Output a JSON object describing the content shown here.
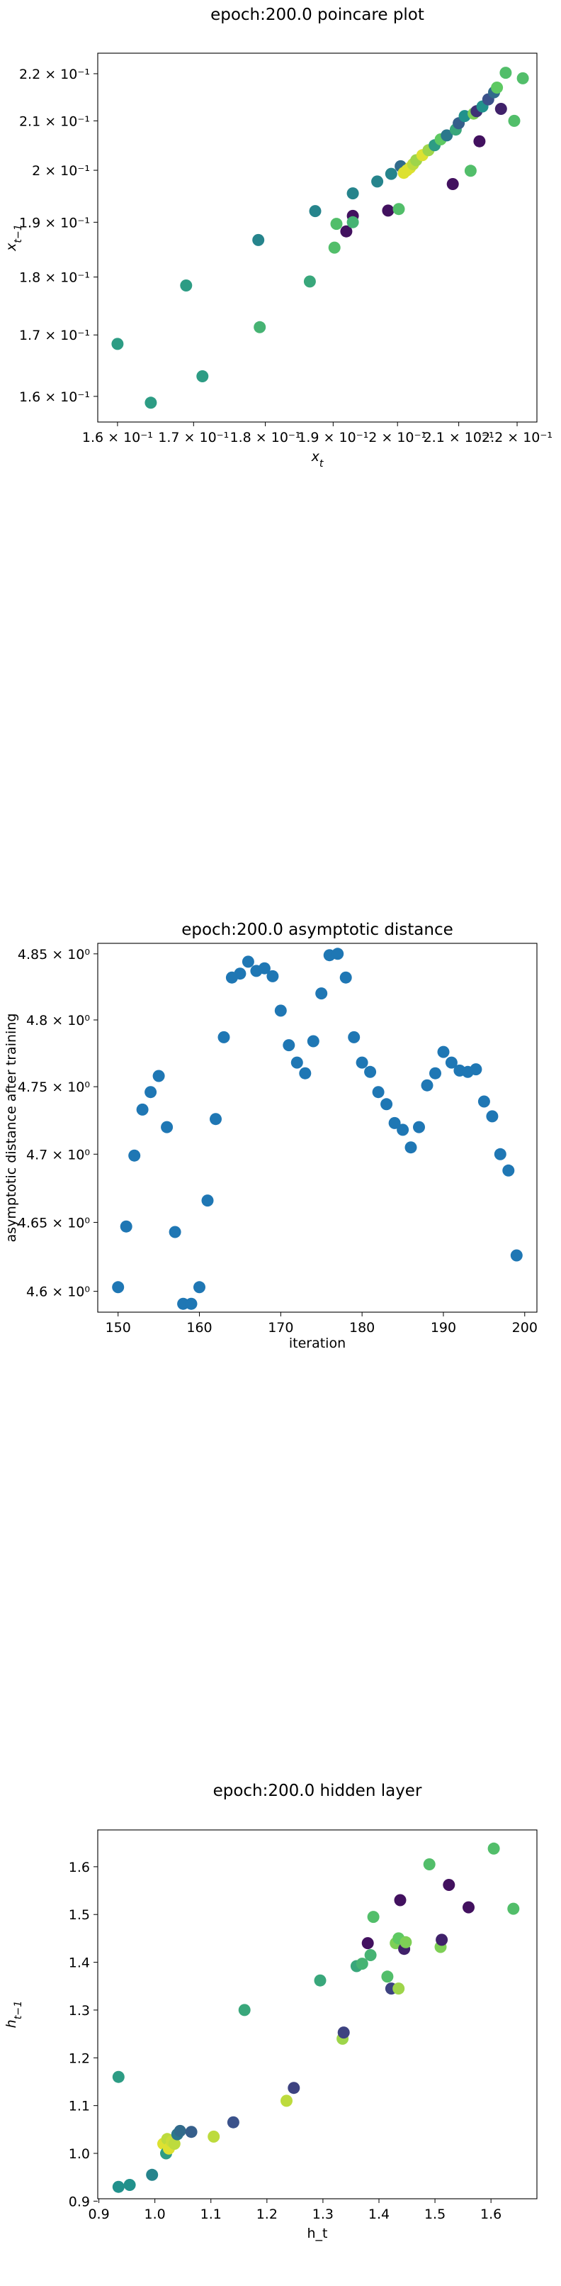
{
  "chart_data": [
    {
      "type": "scatter",
      "title": "epoch:200.0 poincare plot",
      "xlabel": "x_t",
      "ylabel": "x_{t-1}",
      "xscale": "log",
      "yscale": "log",
      "xlim": [
        0.1575,
        0.2235
      ],
      "ylim": [
        0.156,
        0.2245
      ],
      "xticks": [
        0.16,
        0.17,
        0.18,
        0.19,
        0.2,
        0.21,
        0.22
      ],
      "xtick_labels": [
        "1.6 × 10⁻¹",
        "1.7 × 10⁻¹",
        "1.8 × 10⁻¹",
        "1.9 × 10⁻¹",
        "2 × 10⁻¹",
        "2.1 × 10⁻¹",
        "2.2 × 10⁻¹"
      ],
      "yticks": [
        0.16,
        0.17,
        0.18,
        0.19,
        0.2,
        0.21,
        0.22
      ],
      "ytick_labels": [
        "1.6 × 10⁻¹",
        "1.7 × 10⁻¹",
        "1.8 × 10⁻¹",
        "1.9 × 10⁻¹",
        "2 × 10⁻¹",
        "2.1 × 10⁻¹",
        "2.2 × 10⁻¹"
      ],
      "grid": false,
      "colormap": "viridis",
      "points": [
        {
          "x": 0.16,
          "y": 0.1685,
          "c": 0.55
        },
        {
          "x": 0.1643,
          "y": 0.159,
          "c": 0.55
        },
        {
          "x": 0.169,
          "y": 0.1785,
          "c": 0.55
        },
        {
          "x": 0.1712,
          "y": 0.1632,
          "c": 0.55
        },
        {
          "x": 0.179,
          "y": 0.1867,
          "c": 0.45
        },
        {
          "x": 0.1792,
          "y": 0.1713,
          "c": 0.65
        },
        {
          "x": 0.1865,
          "y": 0.1792,
          "c": 0.6
        },
        {
          "x": 0.1873,
          "y": 0.1921,
          "c": 0.45
        },
        {
          "x": 0.1902,
          "y": 0.1853,
          "c": 0.7
        },
        {
          "x": 0.1905,
          "y": 0.1897,
          "c": 0.7
        },
        {
          "x": 0.192,
          "y": 0.1883,
          "c": 0.05
        },
        {
          "x": 0.193,
          "y": 0.1912,
          "c": 0.05
        },
        {
          "x": 0.193,
          "y": 0.19,
          "c": 0.65
        },
        {
          "x": 0.193,
          "y": 0.1955,
          "c": 0.45
        },
        {
          "x": 0.1968,
          "y": 0.1978,
          "c": 0.45
        },
        {
          "x": 0.1985,
          "y": 0.1922,
          "c": 0.05
        },
        {
          "x": 0.199,
          "y": 0.1993,
          "c": 0.45
        },
        {
          "x": 0.2002,
          "y": 0.1925,
          "c": 0.7
        },
        {
          "x": 0.2005,
          "y": 0.2008,
          "c": 0.35
        },
        {
          "x": 0.201,
          "y": 0.1995,
          "c": 0.95
        },
        {
          "x": 0.2015,
          "y": 0.2,
          "c": 0.95
        },
        {
          "x": 0.202,
          "y": 0.2005,
          "c": 0.95
        },
        {
          "x": 0.2025,
          "y": 0.2012,
          "c": 0.9
        },
        {
          "x": 0.203,
          "y": 0.202,
          "c": 0.85
        },
        {
          "x": 0.204,
          "y": 0.203,
          "c": 0.95
        },
        {
          "x": 0.205,
          "y": 0.204,
          "c": 0.85
        },
        {
          "x": 0.206,
          "y": 0.205,
          "c": 0.55
        },
        {
          "x": 0.207,
          "y": 0.2062,
          "c": 0.75
        },
        {
          "x": 0.208,
          "y": 0.207,
          "c": 0.4
        },
        {
          "x": 0.209,
          "y": 0.1973,
          "c": 0.05
        },
        {
          "x": 0.2095,
          "y": 0.2082,
          "c": 0.6
        },
        {
          "x": 0.21,
          "y": 0.2095,
          "c": 0.3
        },
        {
          "x": 0.211,
          "y": 0.211,
          "c": 0.5
        },
        {
          "x": 0.212,
          "y": 0.1999,
          "c": 0.7
        },
        {
          "x": 0.2125,
          "y": 0.2115,
          "c": 0.8
        },
        {
          "x": 0.213,
          "y": 0.212,
          "c": 0.15
        },
        {
          "x": 0.2135,
          "y": 0.2058,
          "c": 0.05
        },
        {
          "x": 0.214,
          "y": 0.213,
          "c": 0.5
        },
        {
          "x": 0.215,
          "y": 0.2145,
          "c": 0.25
        },
        {
          "x": 0.216,
          "y": 0.216,
          "c": 0.35
        },
        {
          "x": 0.2165,
          "y": 0.217,
          "c": 0.75
        },
        {
          "x": 0.2172,
          "y": 0.2125,
          "c": 0.1
        },
        {
          "x": 0.218,
          "y": 0.2202,
          "c": 0.7
        },
        {
          "x": 0.2195,
          "y": 0.21,
          "c": 0.7
        },
        {
          "x": 0.221,
          "y": 0.219,
          "c": 0.7
        }
      ]
    },
    {
      "type": "scatter",
      "title": "epoch:200.0 asymptotic distance",
      "xlabel": "iteration",
      "ylabel": "asymptotic distance after training",
      "yscale": "log",
      "xlim": [
        147.5,
        201.5
      ],
      "ylim": [
        4.585,
        4.858
      ],
      "xticks": [
        150,
        160,
        170,
        180,
        190,
        200
      ],
      "xtick_labels": [
        "150",
        "160",
        "170",
        "180",
        "190",
        "200"
      ],
      "yticks": [
        4.6,
        4.65,
        4.7,
        4.75,
        4.8,
        4.85
      ],
      "ytick_labels": [
        "4.6 × 10⁰",
        "4.65 × 10⁰",
        "4.7 × 10⁰",
        "4.75 × 10⁰",
        "4.8 × 10⁰",
        "4.85 × 10⁰"
      ],
      "grid": false,
      "color": "#1f77b4",
      "points": [
        {
          "x": 150,
          "y": 4.603
        },
        {
          "x": 151,
          "y": 4.647
        },
        {
          "x": 152,
          "y": 4.699
        },
        {
          "x": 153,
          "y": 4.733
        },
        {
          "x": 154,
          "y": 4.746
        },
        {
          "x": 155,
          "y": 4.758
        },
        {
          "x": 156,
          "y": 4.72
        },
        {
          "x": 157,
          "y": 4.643
        },
        {
          "x": 158,
          "y": 4.591
        },
        {
          "x": 159,
          "y": 4.591
        },
        {
          "x": 160,
          "y": 4.603
        },
        {
          "x": 161,
          "y": 4.666
        },
        {
          "x": 162,
          "y": 4.726
        },
        {
          "x": 163,
          "y": 4.787
        },
        {
          "x": 164,
          "y": 4.832
        },
        {
          "x": 165,
          "y": 4.835
        },
        {
          "x": 166,
          "y": 4.844
        },
        {
          "x": 167,
          "y": 4.837
        },
        {
          "x": 168,
          "y": 4.839
        },
        {
          "x": 169,
          "y": 4.833
        },
        {
          "x": 170,
          "y": 4.807
        },
        {
          "x": 171,
          "y": 4.781
        },
        {
          "x": 172,
          "y": 4.768
        },
        {
          "x": 173,
          "y": 4.76
        },
        {
          "x": 174,
          "y": 4.784
        },
        {
          "x": 175,
          "y": 4.82
        },
        {
          "x": 176,
          "y": 4.849
        },
        {
          "x": 177,
          "y": 4.85
        },
        {
          "x": 178,
          "y": 4.832
        },
        {
          "x": 179,
          "y": 4.787
        },
        {
          "x": 180,
          "y": 4.768
        },
        {
          "x": 181,
          "y": 4.761
        },
        {
          "x": 182,
          "y": 4.746
        },
        {
          "x": 183,
          "y": 4.737
        },
        {
          "x": 184,
          "y": 4.723
        },
        {
          "x": 185,
          "y": 4.718
        },
        {
          "x": 186,
          "y": 4.705
        },
        {
          "x": 187,
          "y": 4.72
        },
        {
          "x": 188,
          "y": 4.751
        },
        {
          "x": 189,
          "y": 4.76
        },
        {
          "x": 190,
          "y": 4.776
        },
        {
          "x": 191,
          "y": 4.768
        },
        {
          "x": 192,
          "y": 4.762
        },
        {
          "x": 193,
          "y": 4.761
        },
        {
          "x": 194,
          "y": 4.763
        },
        {
          "x": 195,
          "y": 4.739
        },
        {
          "x": 196,
          "y": 4.728
        },
        {
          "x": 197,
          "y": 4.7
        },
        {
          "x": 198,
          "y": 4.688
        },
        {
          "x": 199,
          "y": 4.626
        }
      ]
    },
    {
      "type": "scatter",
      "title": "epoch:200.0 hidden layer",
      "xlabel": "h_t",
      "ylabel": "h_{t-1}",
      "xlim": [
        0.898,
        1.682
      ],
      "ylim": [
        0.905,
        1.677
      ],
      "xticks": [
        0.9,
        1.0,
        1.1,
        1.2,
        1.3,
        1.4,
        1.5,
        1.6
      ],
      "xtick_labels": [
        "0.9",
        "1.0",
        "1.1",
        "1.2",
        "1.3",
        "1.4",
        "1.5",
        "1.6"
      ],
      "yticks": [
        0.9,
        1.0,
        1.1,
        1.2,
        1.3,
        1.4,
        1.5,
        1.6
      ],
      "ytick_labels": [
        "0.9",
        "1.0",
        "1.1",
        "1.2",
        "1.3",
        "1.4",
        "1.5",
        "1.6"
      ],
      "grid": false,
      "colormap": "viridis",
      "points": [
        {
          "x": 0.935,
          "y": 1.16,
          "c": 0.55
        },
        {
          "x": 0.935,
          "y": 0.93,
          "c": 0.5
        },
        {
          "x": 0.955,
          "y": 0.934,
          "c": 0.5
        },
        {
          "x": 0.995,
          "y": 0.955,
          "c": 0.45
        },
        {
          "x": 1.015,
          "y": 1.02,
          "c": 0.95
        },
        {
          "x": 1.02,
          "y": 1.0,
          "c": 0.55
        },
        {
          "x": 1.022,
          "y": 1.03,
          "c": 0.9
        },
        {
          "x": 1.025,
          "y": 1.01,
          "c": 0.95
        },
        {
          "x": 1.03,
          "y": 1.025,
          "c": 0.92
        },
        {
          "x": 1.035,
          "y": 1.02,
          "c": 0.9
        },
        {
          "x": 1.04,
          "y": 1.04,
          "c": 0.4
        },
        {
          "x": 1.045,
          "y": 1.047,
          "c": 0.35
        },
        {
          "x": 1.065,
          "y": 1.045,
          "c": 0.3
        },
        {
          "x": 1.105,
          "y": 1.035,
          "c": 0.9
        },
        {
          "x": 1.14,
          "y": 1.065,
          "c": 0.25
        },
        {
          "x": 1.16,
          "y": 1.3,
          "c": 0.6
        },
        {
          "x": 1.235,
          "y": 1.11,
          "c": 0.9
        },
        {
          "x": 1.248,
          "y": 1.137,
          "c": 0.2
        },
        {
          "x": 1.295,
          "y": 1.362,
          "c": 0.6
        },
        {
          "x": 1.335,
          "y": 1.24,
          "c": 0.85
        },
        {
          "x": 1.337,
          "y": 1.253,
          "c": 0.2
        },
        {
          "x": 1.36,
          "y": 1.392,
          "c": 0.6
        },
        {
          "x": 1.37,
          "y": 1.397,
          "c": 0.65
        },
        {
          "x": 1.38,
          "y": 1.44,
          "c": 0.05
        },
        {
          "x": 1.385,
          "y": 1.415,
          "c": 0.65
        },
        {
          "x": 1.39,
          "y": 1.495,
          "c": 0.7
        },
        {
          "x": 1.415,
          "y": 1.37,
          "c": 0.7
        },
        {
          "x": 1.422,
          "y": 1.345,
          "c": 0.2
        },
        {
          "x": 1.43,
          "y": 1.44,
          "c": 0.8
        },
        {
          "x": 1.435,
          "y": 1.45,
          "c": 0.75
        },
        {
          "x": 1.435,
          "y": 1.345,
          "c": 0.85
        },
        {
          "x": 1.438,
          "y": 1.53,
          "c": 0.05
        },
        {
          "x": 1.445,
          "y": 1.428,
          "c": 0.1
        },
        {
          "x": 1.448,
          "y": 1.442,
          "c": 0.8
        },
        {
          "x": 1.49,
          "y": 1.605,
          "c": 0.7
        },
        {
          "x": 1.51,
          "y": 1.432,
          "c": 0.8
        },
        {
          "x": 1.512,
          "y": 1.447,
          "c": 0.1
        },
        {
          "x": 1.525,
          "y": 1.562,
          "c": 0.05
        },
        {
          "x": 1.56,
          "y": 1.515,
          "c": 0.05
        },
        {
          "x": 1.605,
          "y": 1.638,
          "c": 0.7
        },
        {
          "x": 1.64,
          "y": 1.512,
          "c": 0.7
        }
      ]
    }
  ]
}
